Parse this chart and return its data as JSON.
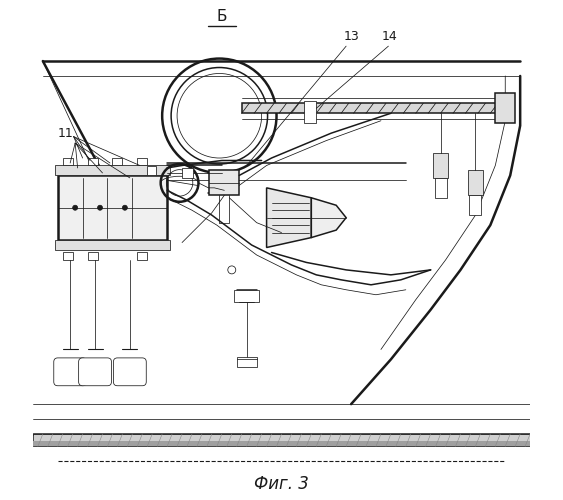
{
  "fig_label": "Фиг. 3",
  "section_label": "Б",
  "label_11": "11",
  "label_13": "13",
  "label_14": "14",
  "bg_color": "#ffffff",
  "line_color": "#1a1a1a",
  "lw_main": 1.1,
  "lw_thin": 0.55,
  "lw_thick": 1.8,
  "lw_med": 0.8
}
